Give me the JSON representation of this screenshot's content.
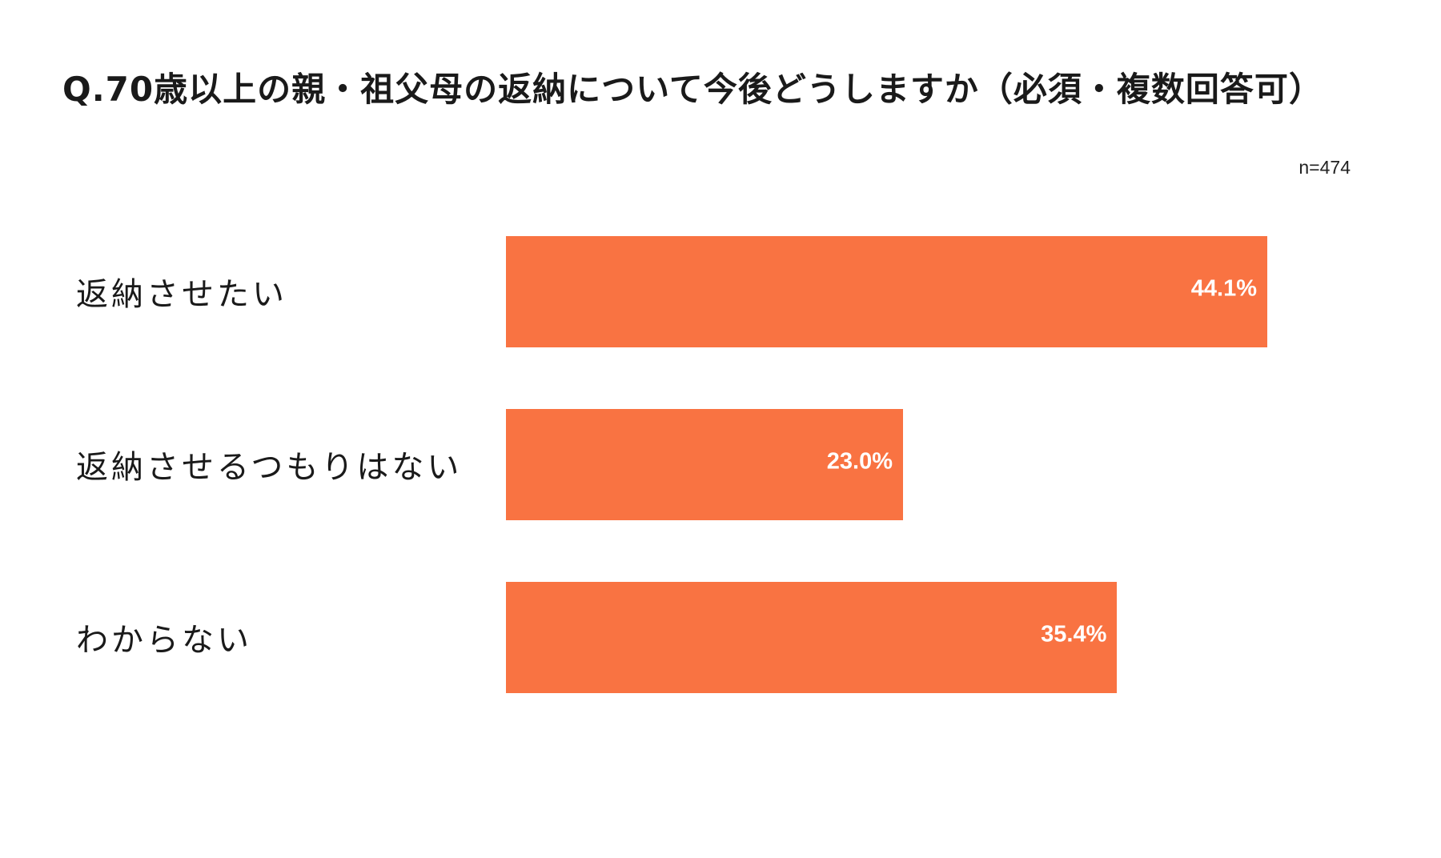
{
  "chart_data": {
    "type": "bar",
    "orientation": "horizontal",
    "title": "Q.70歳以上の親・祖父母の返納について今後どうしますか（必須・複数回答可）",
    "sample_size": "n=474",
    "categories": [
      "返納させたい",
      "返納させるつもりはない",
      "わからない"
    ],
    "values": [
      44.1,
      23.0,
      35.4
    ],
    "value_labels": [
      "44.1%",
      "23.0%",
      "35.4%"
    ],
    "unit": "%",
    "bar_color": "#f97342",
    "value_label_color": "#ffffff",
    "grid": false,
    "legend": "none"
  }
}
